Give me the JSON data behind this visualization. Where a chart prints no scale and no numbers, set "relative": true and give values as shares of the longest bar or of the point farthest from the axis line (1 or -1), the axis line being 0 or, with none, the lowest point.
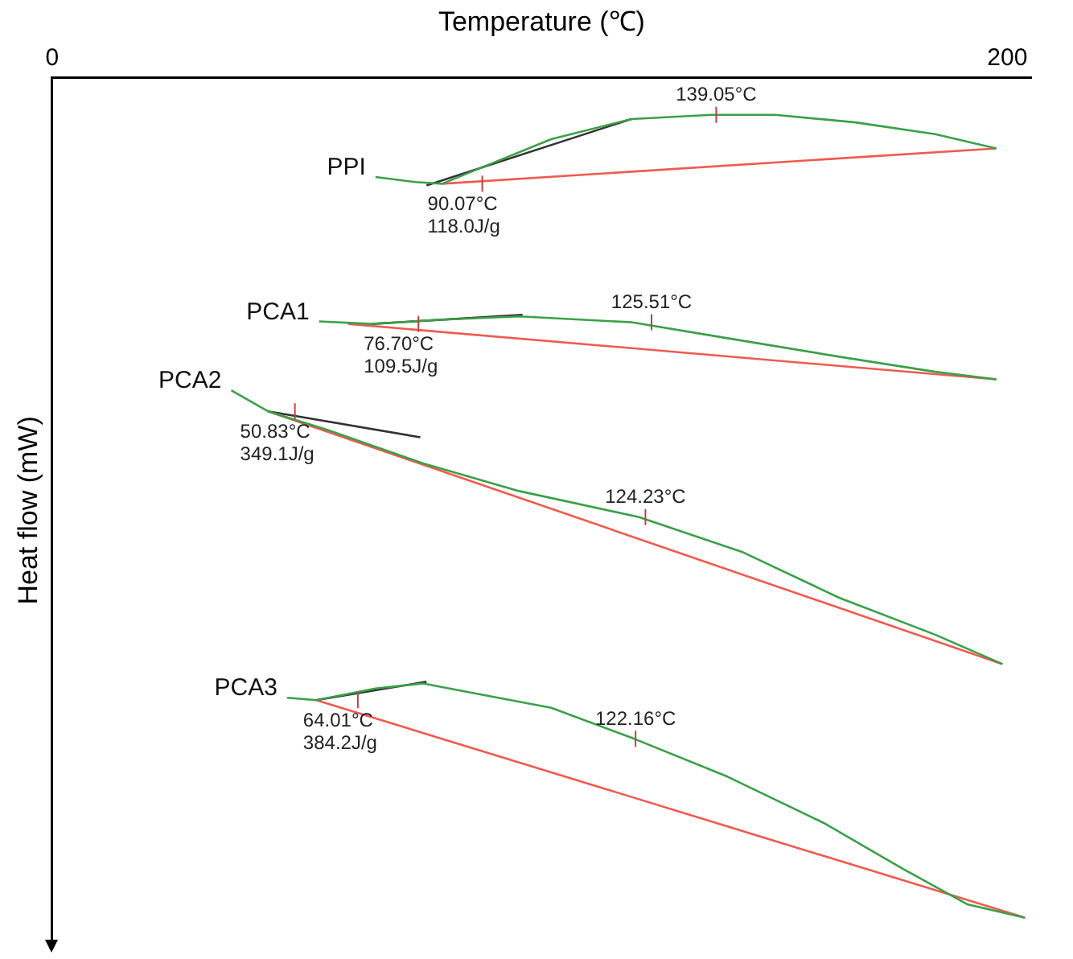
{
  "chart_data": {
    "type": "line",
    "xlabel": "Temperature (℃)",
    "ylabel": "Heat flow (mW)",
    "relative": true,
    "xlim": [
      0,
      205
    ],
    "xticks": [
      0,
      200
    ],
    "grid": false,
    "legend": false,
    "marker": "none",
    "line_style": "solid",
    "series": [
      {
        "name": "PPI",
        "color": "#3aa048",
        "x": [
          67.7,
          76.0,
          81.7,
          91.1,
          104.5,
          121.3,
          138.0,
          151.4,
          168.2,
          184.9,
          197.7
        ],
        "values": [
          -0.118,
          -0.124,
          -0.126,
          -0.104,
          -0.073,
          -0.049,
          -0.044,
          -0.044,
          -0.053,
          -0.067,
          -0.084
        ]
      },
      {
        "color": "#f05a50",
        "x": [
          81.7,
          197.7
        ],
        "values": [
          -0.126,
          -0.084
        ]
      },
      {
        "color": "#333333",
        "x": [
          78.4,
          121.3
        ],
        "values": [
          -0.128,
          -0.049
        ]
      },
      {
        "name": "PCA1",
        "color": "#3aa048",
        "x": [
          55.9,
          66.9,
          81.1,
          97.8,
          121.3,
          141.4,
          164.8,
          184.9,
          197.7
        ],
        "values": [
          -0.29,
          -0.293,
          -0.288,
          -0.284,
          -0.291,
          -0.31,
          -0.332,
          -0.35,
          -0.359
        ]
      },
      {
        "color": "#f05a50",
        "x": [
          62.0,
          197.7
        ],
        "values": [
          -0.293,
          -0.359
        ]
      },
      {
        "color": "#333333",
        "x": [
          67.0,
          98.5
        ],
        "values": [
          -0.293,
          -0.282
        ]
      },
      {
        "name": "PCA2",
        "color": "#3aa048",
        "x": [
          37.5,
          45.2,
          57.6,
          77.7,
          97.8,
          122.9,
          144.7,
          164.8,
          184.9,
          199.0
        ],
        "values": [
          -0.372,
          -0.397,
          -0.419,
          -0.459,
          -0.492,
          -0.523,
          -0.565,
          -0.619,
          -0.663,
          -0.698
        ]
      },
      {
        "color": "#f05a50",
        "x": [
          45.2,
          199.0
        ],
        "values": [
          -0.397,
          -0.698
        ]
      },
      {
        "color": "#333333",
        "x": [
          45.2,
          77.1
        ],
        "values": [
          -0.397,
          -0.428
        ]
      },
      {
        "name": "PCA3",
        "color": "#3aa048",
        "x": [
          49.2,
          55.3,
          67.7,
          77.7,
          87.8,
          104.5,
          121.9,
          141.4,
          161.5,
          178.2,
          191.6,
          203.7
        ],
        "values": [
          -0.738,
          -0.741,
          -0.727,
          -0.721,
          -0.732,
          -0.75,
          -0.787,
          -0.832,
          -0.887,
          -0.942,
          -0.984,
          -1
        ]
      },
      {
        "color": "#f05a50",
        "x": [
          55.3,
          203.7
        ],
        "values": [
          -0.741,
          -1
        ]
      },
      {
        "color": "#333333",
        "x": [
          55.3,
          78.4
        ],
        "values": [
          -0.741,
          -0.719
        ]
      }
    ],
    "annotations": [
      {
        "text": "139.05°C",
        "x": 139.05,
        "y": -0.044
      },
      {
        "text": "90.07°C\n118.0J/g",
        "x": 90.07,
        "y": -0.126
      },
      {
        "text": "125.51°C",
        "x": 125.51,
        "y": -0.291
      },
      {
        "text": "76.70°C\n109.5J/g",
        "x": 76.7,
        "y": -0.293
      },
      {
        "text": "124.23°C",
        "x": 124.23,
        "y": -0.523
      },
      {
        "text": "50.83°C\n349.1J/g",
        "x": 50.83,
        "y": -0.397
      },
      {
        "text": "122.16°C",
        "x": 122.16,
        "y": -0.787
      },
      {
        "text": "64.01°C\n384.2J/g",
        "x": 64.01,
        "y": -0.741
      }
    ]
  }
}
